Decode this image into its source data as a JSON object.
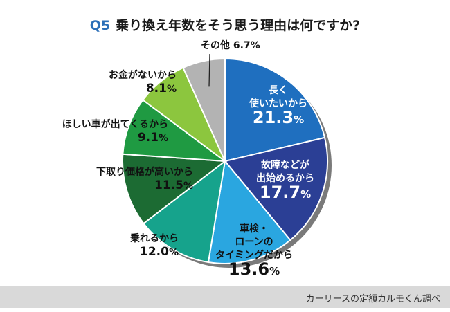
{
  "title": {
    "number": "Q5",
    "text": "乗り換え年数をそう思う理由は何ですか?"
  },
  "source": "カーリースの定額カルモくん調べ",
  "chart_data": {
    "type": "pie",
    "unit": "%",
    "slices": [
      {
        "label": [
          "長く",
          "使いたいから"
        ],
        "value": 21.3,
        "color": "#1f6fbf"
      },
      {
        "label": [
          "故障などが",
          "出始めるから"
        ],
        "value": 17.7,
        "color": "#2b3f95"
      },
      {
        "label": [
          "車検・",
          "ローンの",
          "タイミングだから"
        ],
        "value": 13.6,
        "color": "#2aa6e0"
      },
      {
        "label": [
          "乗れるから"
        ],
        "value": 12.0,
        "color": "#16a38c"
      },
      {
        "label": [
          "下取り価格が高いから"
        ],
        "value": 11.5,
        "color": "#1c6b33"
      },
      {
        "label": [
          "ほしい車が出てくるから"
        ],
        "value": 9.1,
        "color": "#1f9a42"
      },
      {
        "label": [
          "お金がないから"
        ],
        "value": 8.1,
        "color": "#8cc63e"
      },
      {
        "label": [
          "その他"
        ],
        "value": 6.7,
        "color": "#b3b3b3"
      }
    ]
  }
}
